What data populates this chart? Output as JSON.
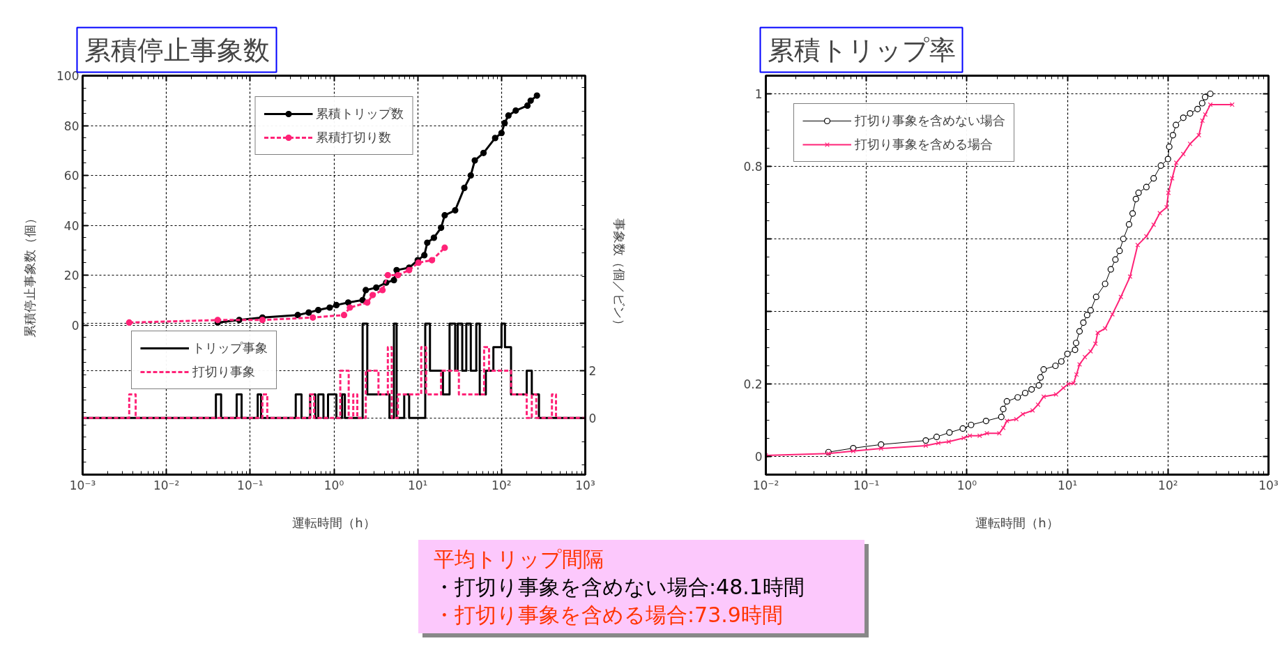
{
  "chart_data": [
    {
      "type": "line",
      "title": "累積停止事象数",
      "xlabel": "運転時間（h）",
      "ylabel": "累積停止事象数（個）",
      "y2label": "事象数（個／ビン）",
      "log": "x",
      "xlim": [
        0.001,
        1000
      ],
      "xticks": [
        {
          "value": 0.001,
          "label": "10⁻³"
        },
        {
          "value": 0.01,
          "label": "10⁻²"
        },
        {
          "value": 0.1,
          "label": "10⁻¹"
        },
        {
          "value": 1,
          "label": "10⁰"
        },
        {
          "value": 10,
          "label": "10¹"
        },
        {
          "value": 100,
          "label": "10²"
        },
        {
          "value": 1000,
          "label": "10³"
        }
      ],
      "ylim": [
        -60,
        100
      ],
      "yticks": [
        0,
        20,
        40,
        60,
        80,
        100
      ],
      "y2lim": [
        -2.4,
        14.5
      ],
      "y2ticks": [
        0,
        2,
        {
          "value": 4,
          "label": null
        }
      ],
      "grid": true,
      "legend": "top",
      "series": [
        {
          "name": "累積トリップ数",
          "color": "#000000",
          "marker": "circle",
          "x": [
            0.041,
            0.074,
            0.14,
            0.37,
            0.5,
            0.65,
            0.89,
            1.07,
            1.48,
            2.2,
            2.4,
            3.2,
            4.2,
            5.2,
            5.6,
            7.9,
            10,
            12,
            13,
            15.6,
            19,
            21,
            28,
            36,
            43,
            48,
            61,
            84,
            100,
            109,
            121,
            148,
            204,
            223,
            265
          ],
          "values": [
            1,
            2,
            3,
            4,
            5,
            6,
            7,
            8,
            9,
            10,
            14,
            15,
            17,
            18,
            22,
            23,
            26,
            28,
            33,
            35,
            39,
            44,
            46,
            55,
            60,
            66,
            69,
            75,
            77,
            81,
            84,
            86,
            88,
            90,
            92
          ]
        },
        {
          "name": "累積打切り数",
          "color": "#ff2277",
          "marker": "circle",
          "line_style": "dashed",
          "x": [
            0.0036,
            0.041,
            0.14,
            0.56,
            1.32,
            1.55,
            2.5,
            2.9,
            3.8,
            4.4,
            5.8,
            7.9,
            10.2,
            14.8,
            21
          ],
          "values": [
            1,
            2,
            2,
            3,
            4,
            7,
            9,
            12,
            14,
            20,
            20,
            22,
            25,
            26,
            31
          ]
        },
        {
          "name": "トリップ事象",
          "type": "step",
          "axis": "y2",
          "color": "#000000",
          "x": [
            0.001,
            0.039,
            0.045,
            0.069,
            0.079,
            0.123,
            0.135,
            0.35,
            0.41,
            0.52,
            0.6,
            0.65,
            0.75,
            0.85,
            1.07,
            1.25,
            1.35,
            2.2,
            2.5,
            4.6,
            5.2,
            5.6,
            6.9,
            7.9,
            12.3,
            14,
            20,
            24,
            28,
            30,
            34,
            38,
            43,
            50,
            55,
            65,
            80,
            100,
            110,
            130,
            200,
            230,
            280,
            1000
          ],
          "values": [
            0,
            1,
            0,
            1,
            0,
            1,
            0,
            1,
            0,
            1,
            0,
            1,
            0,
            1,
            0,
            1,
            0,
            4,
            1,
            0,
            4,
            0,
            1,
            0,
            4,
            2,
            1,
            4,
            2,
            4,
            2,
            4,
            2,
            4,
            1,
            2,
            3,
            4,
            3,
            1,
            2,
            1,
            0,
            0
          ]
        },
        {
          "name": "打切り事象",
          "type": "step",
          "axis": "y2",
          "color": "#ff2277",
          "line_style": "dashed",
          "x": [
            0.001,
            0.0036,
            0.0043,
            0.14,
            0.16,
            0.52,
            0.58,
            1.19,
            1.5,
            1.7,
            1.9,
            2.4,
            3.4,
            4.4,
            4.9,
            5.8,
            11,
            12.6,
            19,
            31,
            62,
            71,
            130,
            200,
            230,
            260,
            400,
            447,
            1000
          ],
          "values": [
            0,
            1,
            0,
            1,
            0,
            1,
            0,
            2,
            0,
            1,
            0,
            2,
            1,
            3,
            0,
            1,
            3,
            1,
            2,
            1,
            3,
            2,
            1,
            0,
            1,
            0,
            1,
            0,
            0
          ]
        }
      ]
    },
    {
      "type": "line",
      "title": "累積トリップ率",
      "xlabel": "運転時間（h）",
      "log": "x",
      "xlim": [
        0.01,
        1000
      ],
      "xticks": [
        {
          "value": 0.01,
          "label": "10⁻²"
        },
        {
          "value": 0.1,
          "label": "10⁻¹"
        },
        {
          "value": 1,
          "label": "10⁰"
        },
        {
          "value": 10,
          "label": "10¹"
        },
        {
          "value": 100,
          "label": "10²"
        },
        {
          "value": 1000,
          "label": "10³"
        }
      ],
      "ylim": [
        -0.05,
        1.05
      ],
      "yticks": [
        0,
        0.2,
        {
          "value": 0.4,
          "label": null
        },
        {
          "value": 0.6,
          "label": null
        },
        0.8,
        1
      ],
      "grid": true,
      "legend": "top left",
      "series": [
        {
          "name": "打切り事象を含めない場合",
          "color": "#000000",
          "marker": "circle",
          "x": [
            0.042,
            0.074,
            0.14,
            0.39,
            0.5,
            0.67,
            0.91,
            1.1,
            1.55,
            2.2,
            2.3,
            2.5,
            3.2,
            3.8,
            4.4,
            5.2,
            5.4,
            5.8,
            7.6,
            8.7,
            10,
            11.9,
            12.2,
            13.2,
            14.4,
            15.7,
            17,
            19.3,
            23.7,
            27,
            30,
            33,
            36,
            41,
            44.5,
            48,
            51,
            61,
            72,
            85,
            100,
            103,
            112,
            120,
            142,
            166,
            197,
            219,
            234,
            264
          ],
          "values": [
            0.012,
            0.023,
            0.033,
            0.044,
            0.054,
            0.066,
            0.077,
            0.087,
            0.098,
            0.109,
            0.131,
            0.152,
            0.163,
            0.175,
            0.185,
            0.196,
            0.218,
            0.24,
            0.25,
            0.262,
            0.283,
            0.294,
            0.313,
            0.345,
            0.369,
            0.39,
            0.403,
            0.44,
            0.476,
            0.516,
            0.543,
            0.567,
            0.6,
            0.64,
            0.67,
            0.71,
            0.727,
            0.743,
            0.767,
            0.802,
            0.82,
            0.854,
            0.886,
            0.914,
            0.934,
            0.946,
            0.958,
            0.974,
            0.991,
            1.0
          ]
        },
        {
          "name": "打切り事象を含める場合",
          "color": "#ff2277",
          "marker": "cross",
          "x": [
            0.01,
            0.042,
            0.074,
            0.14,
            0.39,
            0.52,
            0.66,
            0.93,
            1.07,
            1.34,
            1.58,
            2.1,
            2.3,
            2.5,
            3.1,
            3.6,
            4.5,
            5.1,
            5.8,
            7.7,
            9.1,
            10.2,
            11.5,
            12.3,
            13.2,
            14.9,
            17,
            19,
            20,
            23.7,
            28,
            34,
            42,
            50,
            61,
            72,
            83,
            97,
            101,
            110,
            121,
            142,
            166,
            203,
            220,
            235,
            264,
            435
          ],
          "values": [
            0.003,
            0.008,
            0.015,
            0.022,
            0.03,
            0.037,
            0.041,
            0.051,
            0.057,
            0.057,
            0.064,
            0.064,
            0.079,
            0.098,
            0.103,
            0.117,
            0.127,
            0.143,
            0.165,
            0.171,
            0.189,
            0.2,
            0.202,
            0.226,
            0.254,
            0.274,
            0.29,
            0.311,
            0.341,
            0.353,
            0.392,
            0.44,
            0.496,
            0.583,
            0.607,
            0.639,
            0.671,
            0.687,
            0.727,
            0.767,
            0.81,
            0.834,
            0.862,
            0.886,
            0.926,
            0.943,
            0.97,
            0.97
          ]
        }
      ]
    },
    {
      "type": "other",
      "annotations": [
        "平均トリップ間隔",
        "・打切り事象を含めない場合:48.1時間",
        "・打切り事象を含める場合:73.9時間"
      ]
    }
  ]
}
